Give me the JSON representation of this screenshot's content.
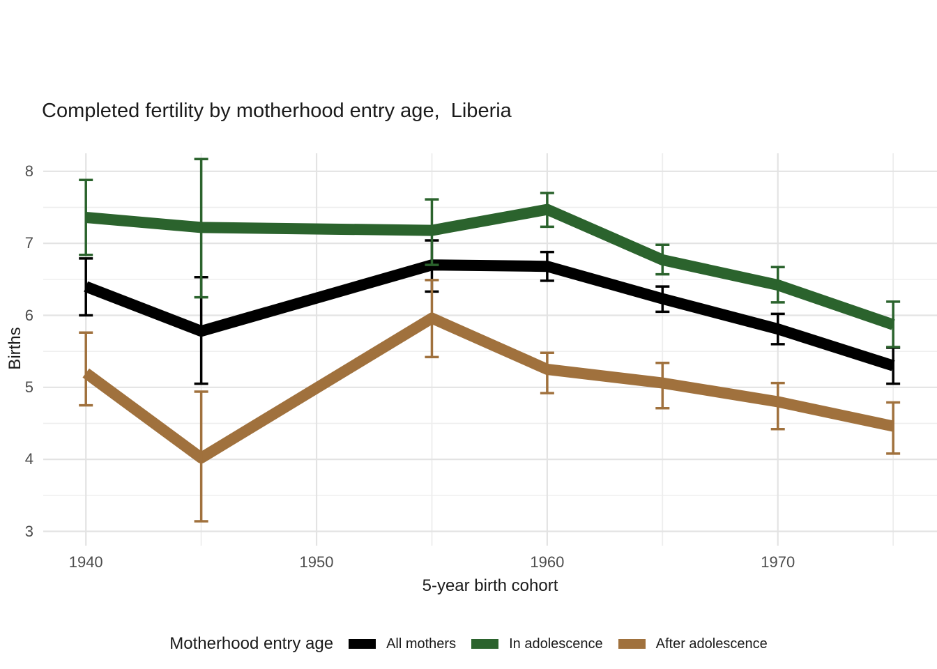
{
  "chart_data": {
    "type": "line",
    "title": "Completed fertility by motherhood entry age,  Liberia",
    "xlabel": "5-year birth cohort",
    "ylabel": "Births",
    "x": [
      1940,
      1945,
      1955,
      1960,
      1965,
      1970,
      1975
    ],
    "series": [
      {
        "name": "All mothers",
        "color": "#000000",
        "values": [
          6.4,
          5.78,
          6.7,
          6.68,
          6.23,
          5.81,
          5.3
        ],
        "lower": [
          6.0,
          5.05,
          6.33,
          6.48,
          6.05,
          5.6,
          5.05
        ],
        "upper": [
          6.79,
          6.53,
          7.04,
          6.88,
          6.4,
          6.02,
          5.55
        ]
      },
      {
        "name": "In adolescence",
        "color": "#2b632d",
        "values": [
          7.36,
          7.22,
          7.18,
          7.47,
          6.77,
          6.42,
          5.87
        ],
        "lower": [
          6.84,
          6.25,
          6.7,
          7.23,
          6.57,
          6.18,
          5.56
        ],
        "upper": [
          7.88,
          8.17,
          7.61,
          7.7,
          6.98,
          6.67,
          6.19
        ]
      },
      {
        "name": "After adolescence",
        "color": "#a0713d",
        "values": [
          5.2,
          4.02,
          5.96,
          5.25,
          5.06,
          4.8,
          4.46
        ],
        "lower": [
          4.75,
          3.14,
          5.42,
          4.92,
          4.71,
          4.42,
          4.08
        ],
        "upper": [
          5.76,
          4.94,
          6.49,
          5.48,
          5.34,
          5.06,
          4.79
        ]
      }
    ],
    "error_bars": true,
    "x_ticks": {
      "values": [
        1940,
        1950,
        1960,
        1970
      ],
      "labels": [
        "1940",
        "1950",
        "1960",
        "1970"
      ]
    },
    "x_minor_ticks": [
      1945,
      1955,
      1965,
      1975
    ],
    "y_ticks": {
      "values": [
        8,
        7,
        6,
        5,
        4,
        3
      ],
      "labels": [
        "8",
        "7",
        "6",
        "5",
        "4",
        "3"
      ]
    },
    "y_minor_ticks": [
      3.5,
      4.5,
      5.5,
      6.5,
      7.5
    ],
    "xlim": [
      1938.15,
      1976.9
    ],
    "ylim": [
      2.85,
      8.25
    ],
    "grid": "major and minor, light gray on white, no axis lines or ticks",
    "legend": {
      "title": "Motherhood entry age",
      "position": "bottom"
    }
  },
  "colors": {
    "grid_major": "#e3e3e3",
    "grid_minor": "#ededed",
    "axis_text": "#4d4d4d",
    "title_text": "#1a1a1a",
    "background": "#ffffff"
  }
}
